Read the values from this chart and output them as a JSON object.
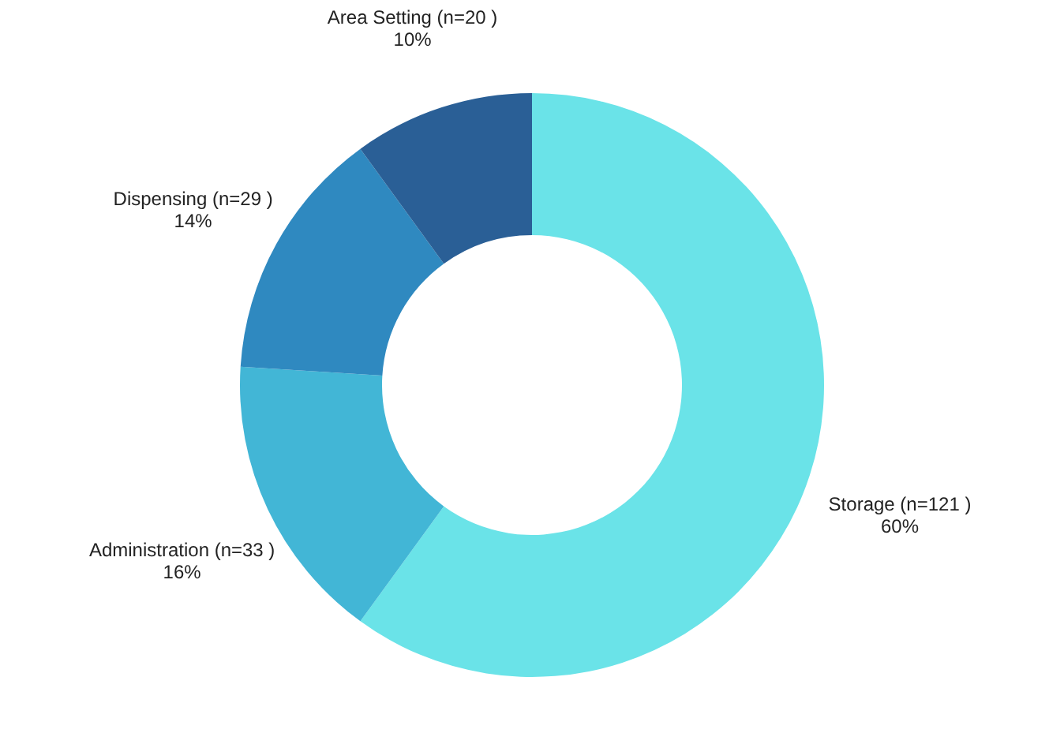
{
  "chart_data": {
    "type": "donut",
    "categories": [
      "Storage (n=121 )",
      "Administration (n=33 )",
      "Dispensing (n=29 )",
      "Area Setting (n=20 )"
    ],
    "values": [
      60,
      16,
      14,
      10
    ],
    "value_labels": [
      "60%",
      "16%",
      "14%",
      "10%"
    ],
    "colors": [
      "#6ae3e8",
      "#42b6d6",
      "#2f89c0",
      "#2a5f96"
    ]
  }
}
